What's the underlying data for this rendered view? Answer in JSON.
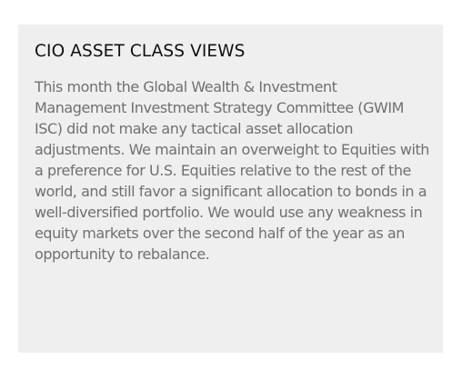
{
  "panel": {
    "title": "CIO ASSET CLASS VIEWS",
    "body": "This month the Global Wealth & Investment Management Investment Strategy Committee (GWIM ISC) did not make any tactical asset allocation adjustments. We maintain an overweight to Equities with a preference for U.S. Equities relative to the rest of the world, and still favor a significant allocation to bonds in a well-diversified portfolio. We would use any weakness in equity markets over the second half of the year as an opportunity to rebalance.",
    "background_color": "#efefef"
  }
}
